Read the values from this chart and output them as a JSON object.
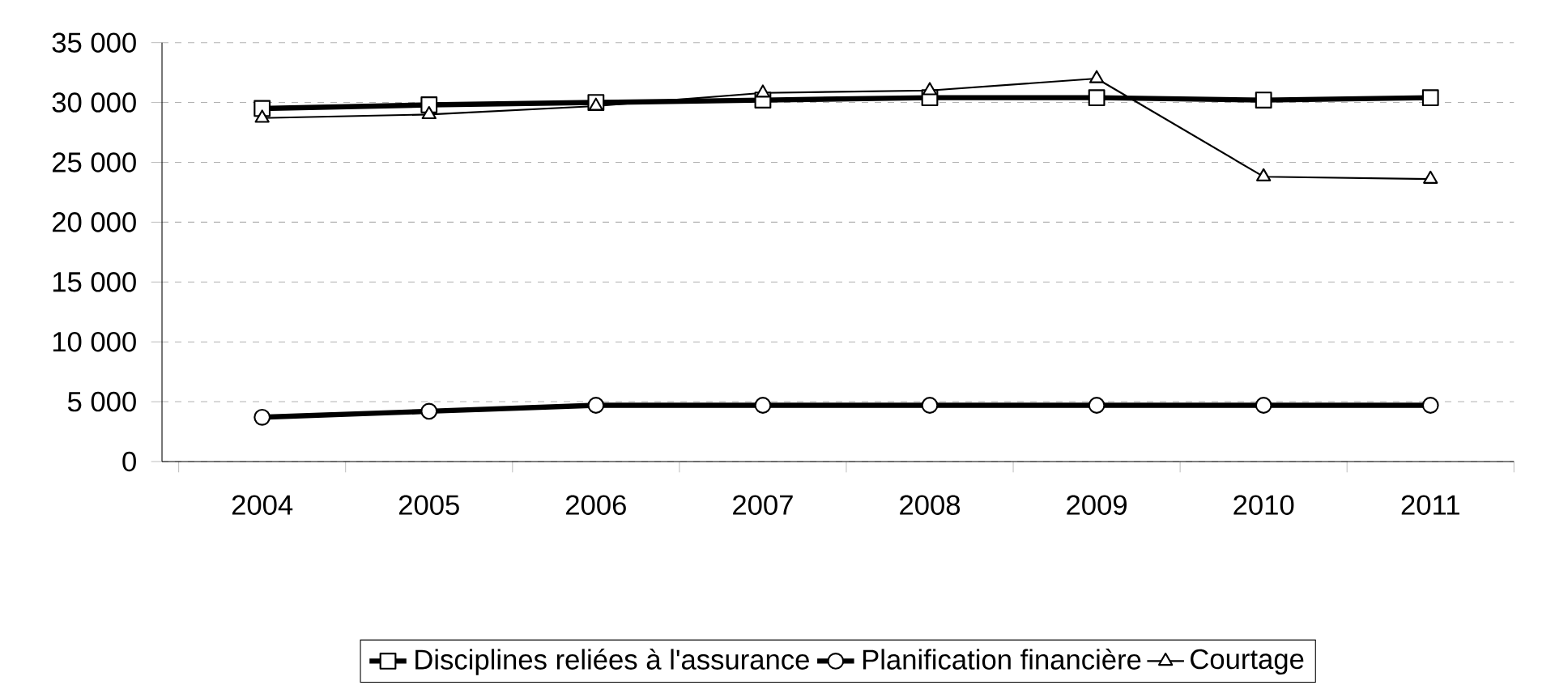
{
  "chart_data": {
    "type": "line",
    "categories": [
      "2004",
      "2005",
      "2006",
      "2007",
      "2008",
      "2009",
      "2010",
      "2011"
    ],
    "series": [
      {
        "name": "Disciplines reliées à l'assurance",
        "color": "#000000",
        "marker": "square",
        "values": [
          29500,
          29800,
          30000,
          30200,
          30400,
          30400,
          30200,
          30400
        ]
      },
      {
        "name": "Planification financière",
        "color": "#000000",
        "marker": "circle",
        "values": [
          3700,
          4200,
          4700,
          4700,
          4700,
          4700,
          4700,
          4700
        ]
      },
      {
        "name": "Courtage",
        "color": "#000000",
        "marker": "triangle",
        "values": [
          28700,
          29000,
          29700,
          30800,
          31000,
          32000,
          23800,
          23600
        ]
      }
    ],
    "ylim": [
      0,
      35000
    ],
    "yticks": [
      0,
      {
        "value": 5000,
        "label": "5 000"
      },
      {
        "value": 10000,
        "label": "10 000"
      },
      {
        "value": 15000,
        "label": "15 000"
      },
      {
        "value": 20000,
        "label": "20 000"
      },
      {
        "value": 25000,
        "label": "25 000"
      },
      {
        "value": 30000,
        "label": "30 000"
      },
      {
        "value": 35000,
        "label": "35 000"
      }
    ],
    "grid": "y",
    "legend": "bottom",
    "line_style": "solid"
  }
}
